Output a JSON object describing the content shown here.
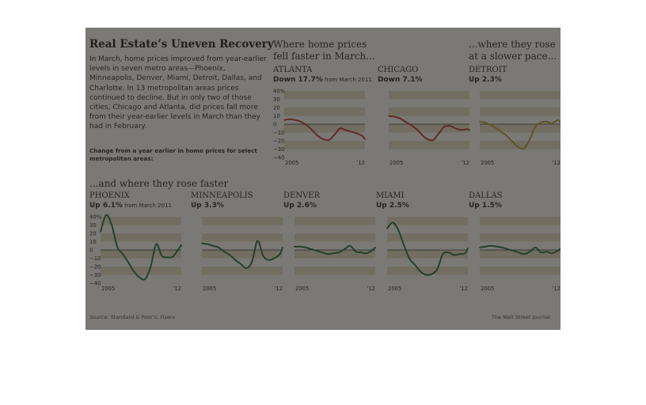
{
  "title": "Real Estate’s Uneven Recovery",
  "intro": "In March, home prices improved from year-earlier levels in seven metro areas—Phoenix, Minneapolis, Denver, Miami, Detroit, Dallas, and Charlotte. In 13 metropolitan areas prices continued to decline. But in only two of those cities, Chicago and Atlanta, did prices fall more from their year-earlier levels in March than they had in February.",
  "caption": "Change from a year earlier in home prices for select metropolitan areas:",
  "headings": {
    "fell_line1": "Where home prices",
    "fell_line2": "fell faster in March...",
    "slower_line1": "...where they rose",
    "slower_line2": "at a slower pace...",
    "faster": "...and where they rose faster"
  },
  "source": "Source: Standard & Poor’s; Fiserv",
  "credit": "The Wall Street Journal",
  "colors": {
    "fell": "#c0322a",
    "slower": "#b5a126",
    "faster": "#1f6b3a",
    "band": "#eadfc8",
    "zero_line": "#222222"
  },
  "chart_data": [
    {
      "type": "line",
      "name": "ATLANTA",
      "change": "Down 17.7%",
      "note": "from March 2011",
      "color": "#c0322a",
      "ylim": [
        -40,
        40
      ],
      "y_ticks": [
        "40%",
        "30",
        "20",
        "10",
        "0",
        "−10",
        "−20",
        "−30",
        "−40"
      ],
      "x_ticks": [
        "2005",
        "’12"
      ],
      "x": [
        2005,
        2005.5,
        2006,
        2006.5,
        2007,
        2007.5,
        2008,
        2008.5,
        2009,
        2009.5,
        2010,
        2010.5,
        2011,
        2011.5,
        2012,
        2012.25
      ],
      "y": [
        5,
        6,
        5,
        3,
        -1,
        -7,
        -14,
        -18,
        -19,
        -13,
        -5,
        -7,
        -9,
        -11,
        -14,
        -18
      ]
    },
    {
      "type": "line",
      "name": "CHICAGO",
      "change": "Down 7.1%",
      "color": "#c0322a",
      "ylim": [
        -40,
        40
      ],
      "x_ticks": [
        "2005",
        "’12"
      ],
      "x": [
        2005,
        2005.5,
        2006,
        2006.5,
        2007,
        2007.5,
        2008,
        2008.5,
        2009,
        2009.5,
        2010,
        2010.5,
        2011,
        2011.5,
        2012,
        2012.25
      ],
      "y": [
        10,
        9,
        7,
        3,
        -1,
        -6,
        -13,
        -18,
        -19,
        -11,
        -3,
        -2,
        -5,
        -7,
        -6,
        -7
      ]
    },
    {
      "type": "line",
      "name": "DETROIT",
      "change": "Up 2.3%",
      "color": "#b5a126",
      "ylim": [
        -40,
        40
      ],
      "x_ticks": [
        "2005",
        "’12"
      ],
      "x": [
        2005,
        2005.5,
        2006,
        2006.5,
        2007,
        2007.5,
        2008,
        2008.5,
        2009,
        2009.5,
        2010,
        2010.5,
        2011,
        2011.5,
        2012,
        2012.25
      ],
      "y": [
        3,
        2,
        -1,
        -5,
        -10,
        -15,
        -22,
        -28,
        -29,
        -18,
        -3,
        2,
        3,
        1,
        5,
        2
      ]
    },
    {
      "type": "line",
      "name": "PHOENIX",
      "change": "Up 6.1%",
      "note": "from March 2011",
      "color": "#1f6b3a",
      "ylim": [
        -40,
        40
      ],
      "y_ticks": [
        "40%",
        "30",
        "20",
        "10",
        "0",
        "−10",
        "−20",
        "−30",
        "−40"
      ],
      "x_ticks": [
        "2005",
        "’12"
      ],
      "x": [
        2005,
        2005.5,
        2006,
        2006.5,
        2007,
        2007.5,
        2008,
        2008.5,
        2009,
        2009.5,
        2010,
        2010.5,
        2011,
        2011.5,
        2012,
        2012.25
      ],
      "y": [
        22,
        42,
        30,
        4,
        -5,
        -15,
        -26,
        -33,
        -35,
        -20,
        7,
        -7,
        -9,
        -8,
        1,
        6
      ]
    },
    {
      "type": "line",
      "name": "MINNEAPOLIS",
      "change": "Up 3.3%",
      "color": "#1f6b3a",
      "ylim": [
        -40,
        40
      ],
      "x_ticks": [
        "2005",
        "’12"
      ],
      "x": [
        2005,
        2005.5,
        2006,
        2006.5,
        2007,
        2007.5,
        2008,
        2008.5,
        2009,
        2009.5,
        2010,
        2010.5,
        2011,
        2011.5,
        2012,
        2012.25
      ],
      "y": [
        8,
        7,
        5,
        3,
        -2,
        -6,
        -12,
        -17,
        -22,
        -14,
        11,
        -7,
        -12,
        -10,
        -5,
        3
      ]
    },
    {
      "type": "line",
      "name": "DENVER",
      "change": "Up 2.6%",
      "color": "#1f6b3a",
      "ylim": [
        -40,
        40
      ],
      "x_ticks": [
        "2005",
        "’12"
      ],
      "x": [
        2005,
        2005.5,
        2006,
        2006.5,
        2007,
        2007.5,
        2008,
        2008.5,
        2009,
        2009.5,
        2010,
        2010.5,
        2011,
        2011.5,
        2012,
        2012.25
      ],
      "y": [
        4,
        4,
        3,
        1,
        -1,
        -3,
        -5,
        -4,
        -3,
        1,
        5,
        -2,
        -3,
        -4,
        0,
        3
      ]
    },
    {
      "type": "line",
      "name": "MIAMI",
      "change": "Up 2.5%",
      "color": "#1f6b3a",
      "ylim": [
        -40,
        40
      ],
      "x_ticks": [
        "2005",
        "’12"
      ],
      "x": [
        2005,
        2005.5,
        2006,
        2006.5,
        2007,
        2007.5,
        2008,
        2008.5,
        2009,
        2009.5,
        2010,
        2010.5,
        2011,
        2011.5,
        2012,
        2012.25
      ],
      "y": [
        26,
        33,
        24,
        6,
        -10,
        -18,
        -26,
        -30,
        -29,
        -23,
        -5,
        -3,
        -6,
        -5,
        -4,
        2
      ]
    },
    {
      "type": "line",
      "name": "DALLAS",
      "change": "Up 1.5%",
      "color": "#1f6b3a",
      "ylim": [
        -40,
        40
      ],
      "x_ticks": [
        "2005",
        "’12"
      ],
      "x": [
        2005,
        2005.5,
        2006,
        2006.5,
        2007,
        2007.5,
        2008,
        2008.5,
        2009,
        2009.5,
        2010,
        2010.5,
        2011,
        2011.5,
        2012,
        2012.25
      ],
      "y": [
        3,
        4,
        5,
        4,
        3,
        1,
        -1,
        -3,
        -5,
        -2,
        3,
        -3,
        -2,
        -4,
        -1,
        1.5
      ]
    }
  ]
}
